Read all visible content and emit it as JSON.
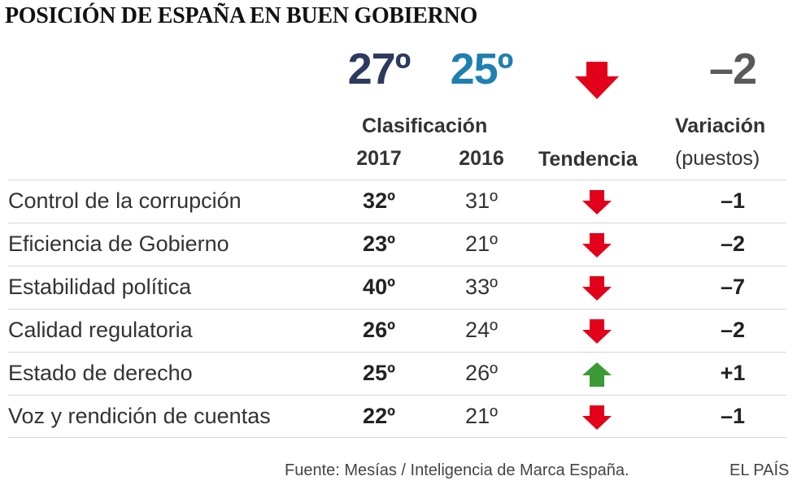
{
  "title": "POSICIÓN DE ESPAÑA EN BUEN GOBIERNO",
  "summary": {
    "rank_2017": "27º",
    "rank_2016": "25º",
    "trend": "down",
    "variation": "–2"
  },
  "headers": {
    "clasificacion": "Clasificación",
    "year_2017": "2017",
    "year_2016": "2016",
    "tendencia": "Tendencia",
    "variacion": "Variación",
    "puestos": "(puestos)"
  },
  "colors": {
    "rank_2017": "#2b3a5e",
    "rank_2016": "#1f7fb0",
    "variation": "#5a5a5a",
    "down": "#e3001b",
    "up": "#3a9a36"
  },
  "chart_data": {
    "type": "table",
    "columns": [
      "",
      "2017",
      "2016",
      "Tendencia",
      "Variación (puestos)"
    ],
    "rows": [
      {
        "label": "Control de la corrupción",
        "y2017": "32º",
        "y2016": "31º",
        "trend": "down",
        "variation": "–1"
      },
      {
        "label": "Eficiencia de Gobierno",
        "y2017": "23º",
        "y2016": "21º",
        "trend": "down",
        "variation": "–2"
      },
      {
        "label": "Estabilidad política",
        "y2017": "40º",
        "y2016": "33º",
        "trend": "down",
        "variation": "–7"
      },
      {
        "label": "Calidad regulatoria",
        "y2017": "26º",
        "y2016": "24º",
        "trend": "down",
        "variation": "–2"
      },
      {
        "label": "Estado de derecho",
        "y2017": "25º",
        "y2016": "26º",
        "trend": "up",
        "variation": "+1"
      },
      {
        "label": "Voz y rendición de cuentas",
        "y2017": "22º",
        "y2016": "21º",
        "trend": "down",
        "variation": "–1"
      }
    ]
  },
  "footer": {
    "source": "Fuente: Mesías / Inteligencia de Marca España.",
    "brand": "EL PAÍS"
  }
}
